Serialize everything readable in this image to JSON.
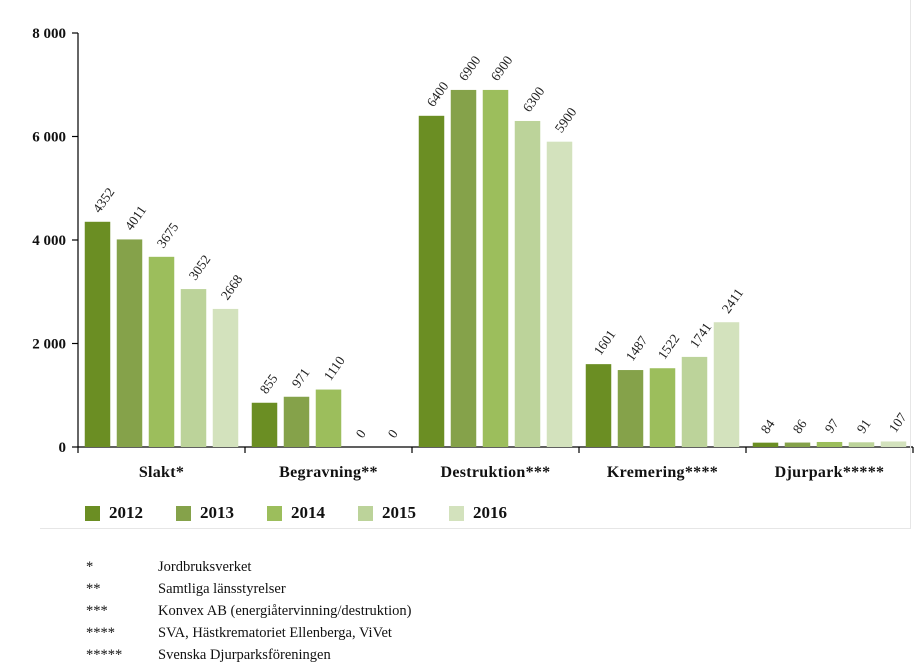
{
  "chart_data": {
    "type": "bar",
    "categories": [
      "Slakt*",
      "Begravning**",
      "Destruktion***",
      "Kremering****",
      "Djurpark*****"
    ],
    "series": [
      {
        "name": "2012",
        "color": "#6b8e23",
        "values": [
          4352,
          855,
          6400,
          1601,
          84
        ]
      },
      {
        "name": "2013",
        "color": "#85a24a",
        "values": [
          4011,
          971,
          6900,
          1487,
          86
        ]
      },
      {
        "name": "2014",
        "color": "#9cbe5c",
        "values": [
          3675,
          1110,
          6900,
          1522,
          97
        ]
      },
      {
        "name": "2015",
        "color": "#bcd39a",
        "values": [
          3052,
          0,
          6300,
          1741,
          91
        ]
      },
      {
        "name": "2016",
        "color": "#d3e2bd",
        "values": [
          2668,
          0,
          5900,
          2411,
          107
        ]
      }
    ],
    "yticks": [
      "0",
      "2 000",
      "4 000",
      "6 000",
      "8 000"
    ],
    "ylim": [
      0,
      8000
    ],
    "grid": false,
    "legend_position": "bottom"
  },
  "footnotes": [
    {
      "mark": "*",
      "text": "Jordbruksverket"
    },
    {
      "mark": "**",
      "text": "Samtliga länsstyrelser"
    },
    {
      "mark": "***",
      "text": "Konvex AB (energiåtervinning/destruktion)"
    },
    {
      "mark": "****",
      "text": "SVA, Hästkrematoriet Ellenberga, ViVet"
    },
    {
      "mark": "*****",
      "text": "Svenska Djurparksföreningen"
    }
  ]
}
